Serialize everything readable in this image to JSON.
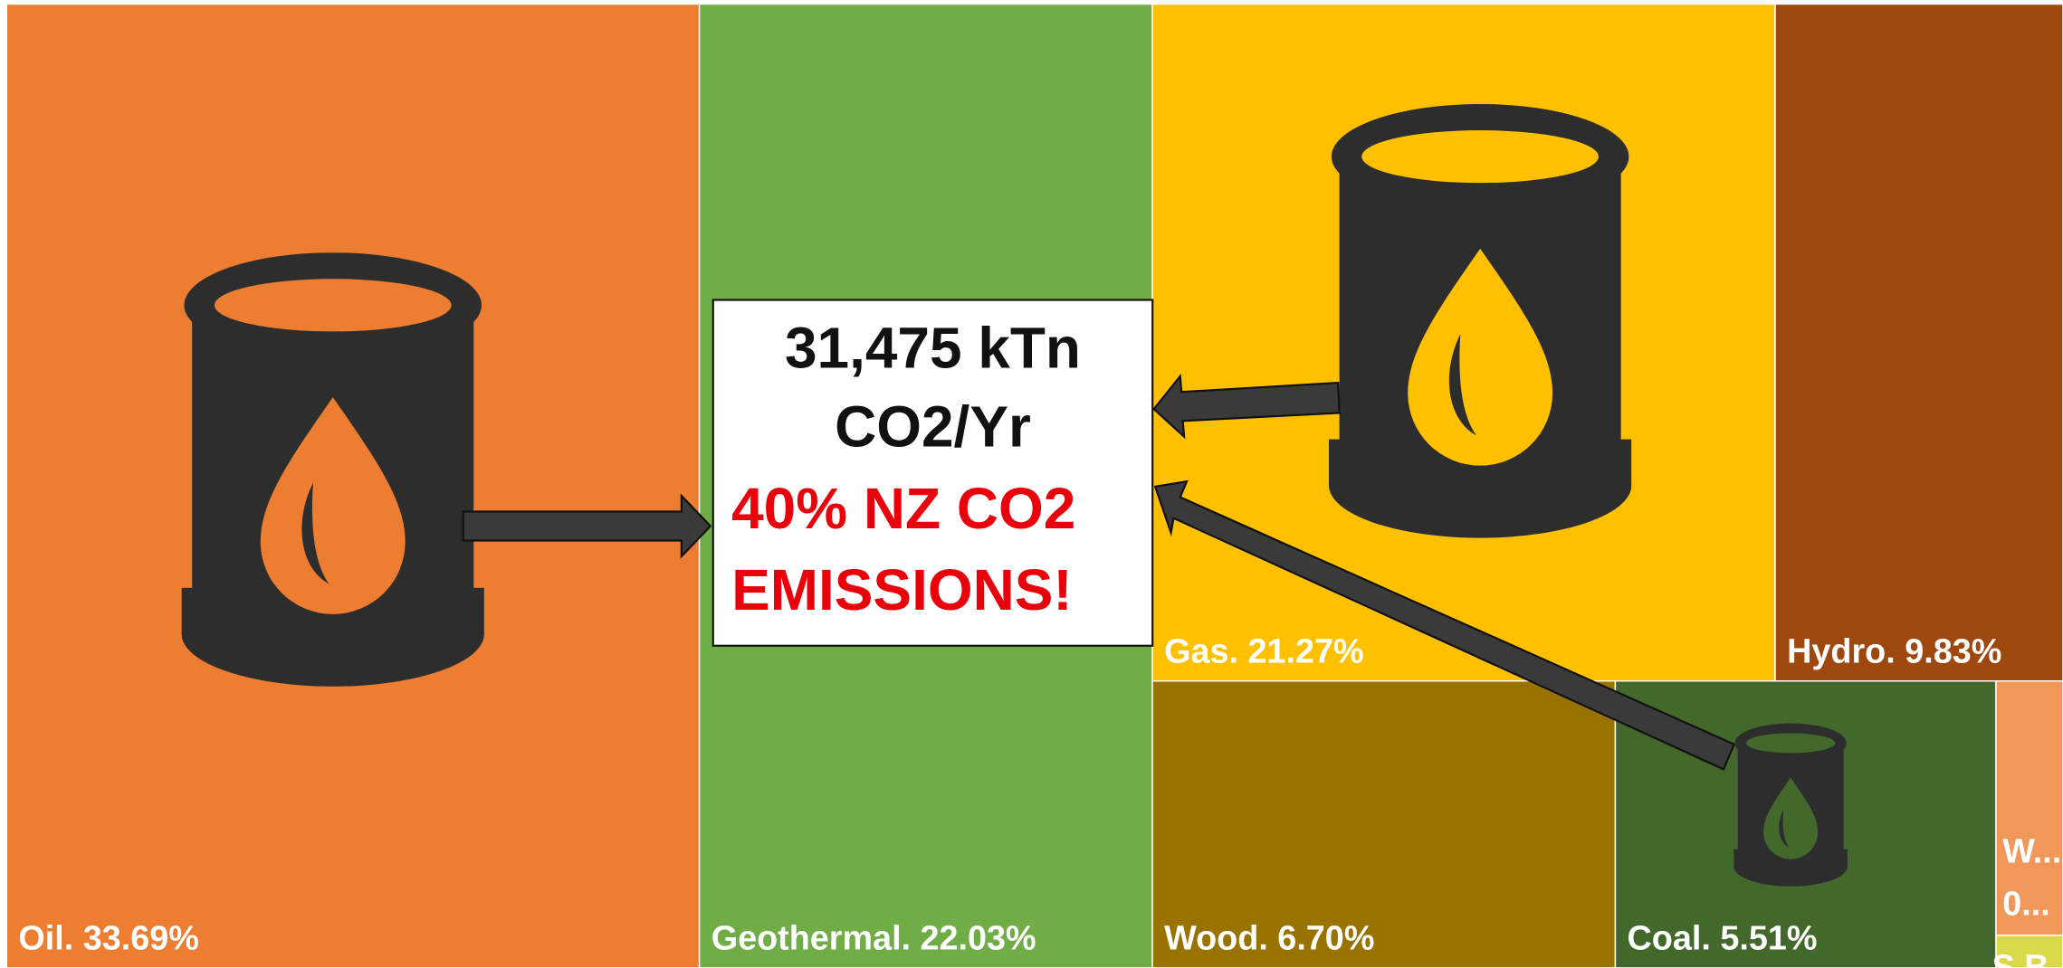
{
  "chart_data": {
    "type": "treemap",
    "values": [
      33.69,
      22.03,
      21.27,
      9.83,
      6.7,
      5.51,
      0.86,
      0.11
    ],
    "value_labels": [
      "Oil. 33.69%",
      "Geothermal. 22.03%",
      "Gas. 21.27%",
      "Hydro. 9.83%",
      "Wood. 6.70%",
      "Coal. 5.51%",
      [
        "W...",
        "0..."
      ],
      "S.B..."
    ],
    "colors": [
      "#ED7D31",
      "#70AD47",
      "#FFC000",
      "#9E480E",
      "#997300",
      "#43682B",
      "#F1975A",
      "#D9D94A"
    ],
    "annotations": [
      "31,475 kTn",
      "CO2/Yr",
      "40% NZ CO2",
      "EMISSIONS!"
    ]
  }
}
